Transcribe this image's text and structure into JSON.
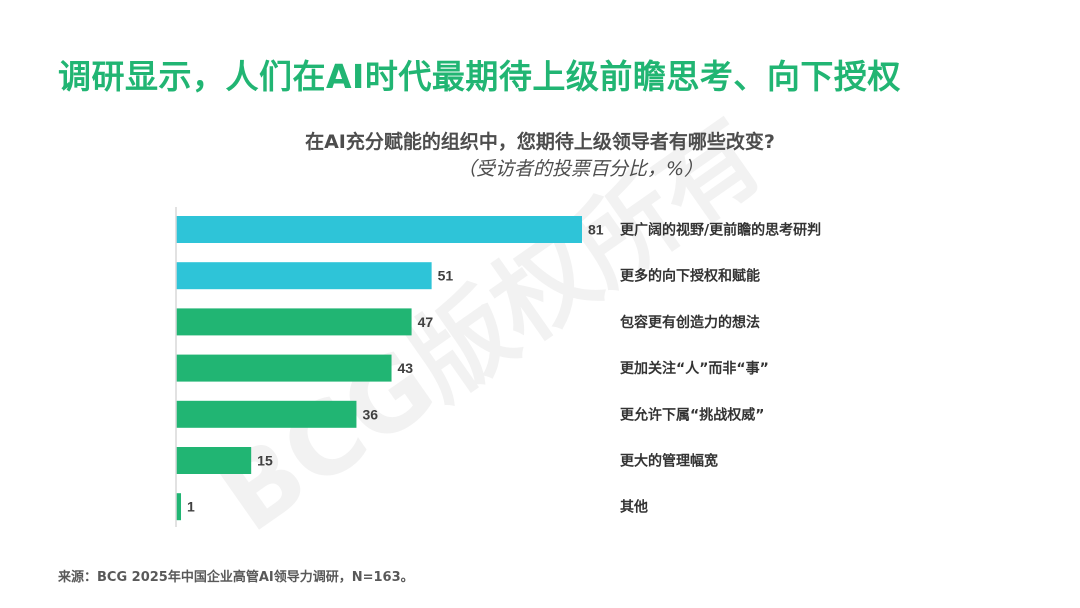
{
  "headline": "调研显示，人们在AI时代最期待上级前瞻思考、向下授权",
  "watermark": "BCG版权所有",
  "source": "来源：BCG 2025年中国企业高管AI领导力调研，N=163。",
  "colors": {
    "headline": "#21b573",
    "highlight_bar": "#2ec4d8",
    "bar": "#21b573",
    "axis": "#d9d9d9"
  },
  "chart_data": {
    "type": "bar",
    "orientation": "horizontal",
    "title": "在AI充分赋能的组织中，您期待上级领导者有哪些改变?",
    "subtitle": "（受访者的投票百分比，%）",
    "categories": [
      "更广阔的视野/更前瞻的思考研判",
      "更多的向下授权和赋能",
      "包容更有创造力的想法",
      "更加关注“人”而非“事”",
      "更允许下属“挑战权威”",
      "更大的管理幅宽",
      "其他"
    ],
    "values": [
      81,
      51,
      47,
      43,
      36,
      15,
      1
    ],
    "highlighted": [
      true,
      true,
      false,
      false,
      false,
      false,
      false
    ],
    "xlim": [
      0,
      81
    ],
    "grid": false
  }
}
